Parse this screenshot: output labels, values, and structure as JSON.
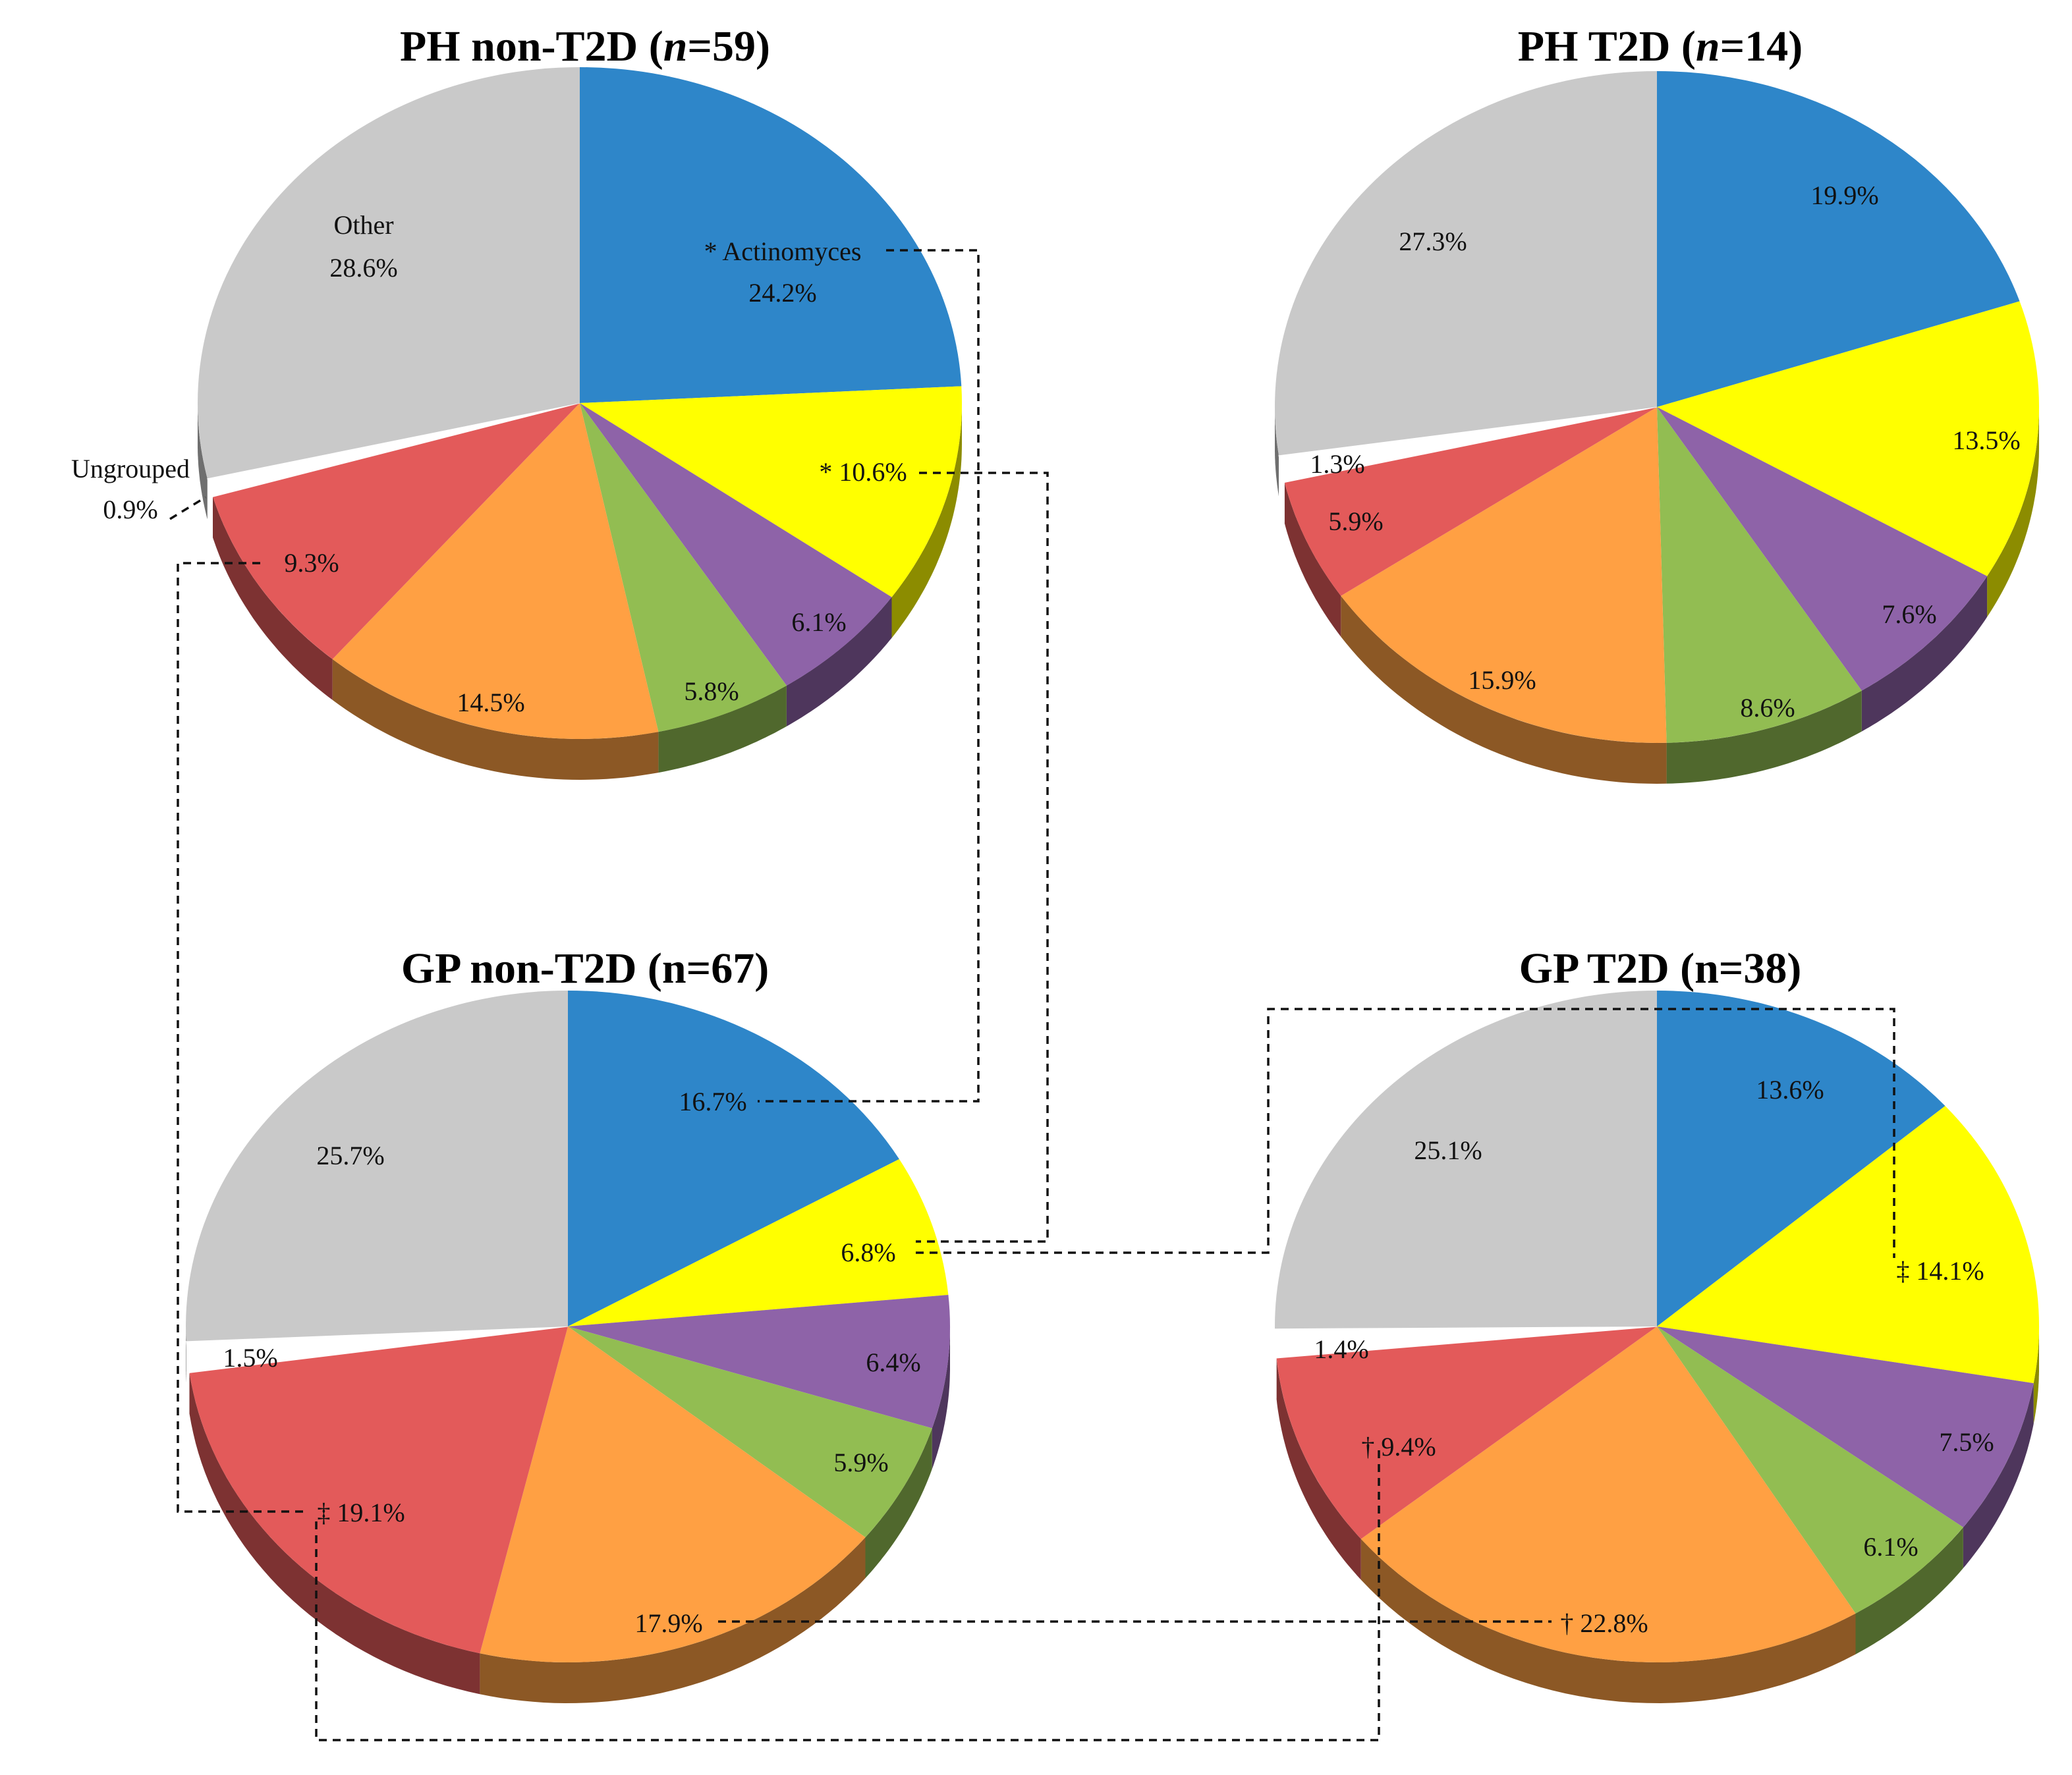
{
  "chart_data": [
    {
      "type": "pie",
      "id": "ph-non-t2d",
      "title_main": "PH non-T2D (",
      "title_var": "n",
      "title_rest": "=59)",
      "slices": [
        {
          "name": "Actinomyces",
          "value": 24.2,
          "label": "24.2%",
          "prefix": "* Actinomyces",
          "color": "#2E86C9"
        },
        {
          "name": "yellow-group",
          "value": 10.6,
          "label": "* 10.6%",
          "color": "#FFFF00"
        },
        {
          "name": "purple-group",
          "value": 6.1,
          "label": "6.1%",
          "color": "#8E63A8"
        },
        {
          "name": "green-group",
          "value": 5.8,
          "label": "5.8%",
          "color": "#92BD52"
        },
        {
          "name": "orange-group",
          "value": 14.5,
          "label": "14.5%",
          "color": "#FFA043"
        },
        {
          "name": "red-group",
          "value": 9.3,
          "label": "9.3%",
          "color": "#E35A5A"
        },
        {
          "name": "Ungrouped",
          "value": 0.9,
          "label": "0.9%",
          "prefix": "Ungrouped",
          "color": "#FFFFFF"
        },
        {
          "name": "Other",
          "value": 28.6,
          "label": "28.6%",
          "prefix": "Other",
          "color": "#C9C9C9"
        }
      ]
    },
    {
      "type": "pie",
      "id": "ph-t2d",
      "title_main": "PH T2D (",
      "title_var": "n",
      "title_rest": "=14)",
      "slices": [
        {
          "name": "Actinomyces",
          "value": 19.9,
          "label": "19.9%",
          "color": "#2E86C9"
        },
        {
          "name": "yellow-group",
          "value": 13.5,
          "label": "13.5%",
          "color": "#FFFF00"
        },
        {
          "name": "purple-group",
          "value": 7.6,
          "label": "7.6%",
          "color": "#8E63A8"
        },
        {
          "name": "green-group",
          "value": 8.6,
          "label": "8.6%",
          "color": "#92BD52"
        },
        {
          "name": "orange-group",
          "value": 15.9,
          "label": "15.9%",
          "color": "#FFA043"
        },
        {
          "name": "red-group",
          "value": 5.9,
          "label": "5.9%",
          "color": "#E35A5A"
        },
        {
          "name": "Ungrouped",
          "value": 1.3,
          "label": "1.3%",
          "color": "#FFFFFF"
        },
        {
          "name": "Other",
          "value": 27.3,
          "label": "27.3%",
          "color": "#C9C9C9"
        }
      ]
    },
    {
      "type": "pie",
      "id": "gp-non-t2d",
      "title_main": "GP non-T2D (n=67)",
      "title_var": "",
      "title_rest": "",
      "slices": [
        {
          "name": "Actinomyces",
          "value": 16.7,
          "label": "16.7%",
          "color": "#2E86C9"
        },
        {
          "name": "yellow-group",
          "value": 6.8,
          "label": "6.8%",
          "color": "#FFFF00"
        },
        {
          "name": "purple-group",
          "value": 6.4,
          "label": "6.4%",
          "color": "#8E63A8"
        },
        {
          "name": "green-group",
          "value": 5.9,
          "label": "5.9%",
          "color": "#92BD52"
        },
        {
          "name": "orange-group",
          "value": 17.9,
          "label": "17.9%",
          "color": "#FFA043"
        },
        {
          "name": "red-group",
          "value": 19.1,
          "label": "‡ 19.1%",
          "color": "#E35A5A"
        },
        {
          "name": "Ungrouped",
          "value": 1.5,
          "label": "1.5%",
          "color": "#FFFFFF"
        },
        {
          "name": "Other",
          "value": 25.7,
          "label": "25.7%",
          "color": "#C9C9C9"
        }
      ]
    },
    {
      "type": "pie",
      "id": "gp-t2d",
      "title_main": "GP T2D (n=38)",
      "title_var": "",
      "title_rest": "",
      "slices": [
        {
          "name": "Actinomyces",
          "value": 13.6,
          "label": "13.6%",
          "color": "#2E86C9"
        },
        {
          "name": "yellow-group",
          "value": 14.1,
          "label": "‡ 14.1%",
          "color": "#FFFF00"
        },
        {
          "name": "purple-group",
          "value": 7.5,
          "label": "7.5%",
          "color": "#8E63A8"
        },
        {
          "name": "green-group",
          "value": 6.1,
          "label": "6.1%",
          "color": "#92BD52"
        },
        {
          "name": "orange-group",
          "value": 22.8,
          "label": "† 22.8%",
          "color": "#FFA043"
        },
        {
          "name": "red-group",
          "value": 9.4,
          "label": "† 9.4%",
          "color": "#E35A5A"
        },
        {
          "name": "Ungrouped",
          "value": 1.4,
          "label": "1.4%",
          "color": "#FFFFFF"
        },
        {
          "name": "Other",
          "value": 25.1,
          "label": "25.1%",
          "color": "#C9C9C9"
        }
      ]
    }
  ]
}
